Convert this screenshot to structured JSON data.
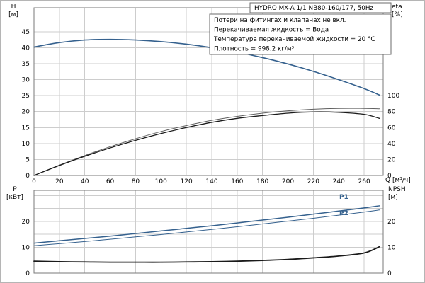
{
  "title": "HYDRO MX-A 1/1 NB80-160/177, 50Hz",
  "info_lines": [
    "Потери на фитингах и клапанах не вкл.",
    "Перекачиваемая жидкость = Вода",
    "Температура перекачиваемой жидкости = 20 °C",
    "Плотность = 998.2 кг/м³"
  ],
  "axis_labels": {
    "h": "H",
    "h_unit": "[м]",
    "eta": "eta",
    "eta_unit": "[%]",
    "p": "P",
    "p_unit": "[кВт]",
    "npsh": "NPSH",
    "npsh_unit": "[м]",
    "q": "Q [м³/ч]"
  },
  "curve_labels": {
    "p1": "P1",
    "p2": "P2"
  },
  "colors": {
    "blue": "#35618e",
    "black": "#1a1a1a",
    "gray": "#5f5f5f",
    "grid": "#cdcdcd",
    "frame": "#7a7a7a",
    "box_border": "#6b6b6b",
    "text": "#000000"
  },
  "chart_data": [
    {
      "type": "line",
      "name": "head-and-efficiency",
      "x_axis": {
        "label": "Q [м³/ч]",
        "range": [
          0,
          275
        ],
        "ticks": [
          0,
          20,
          40,
          60,
          80,
          100,
          120,
          140,
          160,
          180,
          200,
          220,
          240,
          260
        ]
      },
      "y_left": {
        "label": "H [м]",
        "range": [
          0,
          52.5
        ],
        "grid_step": 5,
        "ticks": [
          0,
          5,
          10,
          15,
          20,
          25,
          30,
          35,
          40,
          45
        ]
      },
      "y_right": {
        "label": "eta [%]",
        "ticks": [
          0,
          20,
          40,
          60,
          80,
          100
        ],
        "left_units_per_right_unit": 0.25
      },
      "show_x_tick_labels": true,
      "x": [
        0,
        20,
        40,
        60,
        80,
        100,
        120,
        140,
        160,
        180,
        200,
        220,
        240,
        260,
        272
      ],
      "series": [
        {
          "name": "head",
          "color_key": "blue",
          "width": 1.6,
          "axis": "left",
          "y": [
            40.2,
            41.6,
            42.4,
            42.6,
            42.4,
            41.9,
            41.1,
            40.0,
            38.6,
            36.9,
            34.9,
            32.6,
            30.0,
            27.2,
            25.2
          ]
        },
        {
          "name": "eta-a",
          "color_key": "gray",
          "width": 1.0,
          "axis": "right",
          "y": [
            0,
            13,
            25,
            36,
            46,
            55,
            62.5,
            69,
            74,
            78,
            81,
            83,
            84,
            84,
            83.5
          ]
        },
        {
          "name": "eta-b",
          "color_key": "black",
          "width": 1.3,
          "axis": "right",
          "y": [
            0,
            12.5,
            24,
            34.5,
            44,
            52.5,
            60,
            66.5,
            71.5,
            75,
            78,
            79.5,
            79,
            76.5,
            71.5
          ]
        }
      ]
    },
    {
      "type": "line",
      "name": "power-and-npsh",
      "x_axis": {
        "label": "",
        "range": [
          0,
          275
        ],
        "ticks": [
          0,
          20,
          40,
          60,
          80,
          100,
          120,
          140,
          160,
          180,
          200,
          220,
          240,
          260
        ]
      },
      "y_left": {
        "label": "P [кВт]",
        "range": [
          0,
          32
        ],
        "grid_step": 5,
        "ticks": [
          0,
          10,
          20
        ]
      },
      "y_right": {
        "label": "NPSH [м]",
        "ticks": [
          0,
          10,
          20
        ],
        "left_units_per_right_unit": 1
      },
      "show_x_tick_labels": false,
      "x": [
        0,
        20,
        40,
        60,
        80,
        100,
        120,
        140,
        160,
        180,
        200,
        220,
        240,
        260,
        272
      ],
      "series": [
        {
          "name": "P1",
          "color_key": "blue",
          "width": 1.5,
          "axis": "left",
          "y": [
            11.6,
            12.5,
            13.4,
            14.3,
            15.3,
            16.3,
            17.3,
            18.3,
            19.4,
            20.5,
            21.6,
            22.8,
            24.0,
            25.2,
            26.0
          ]
        },
        {
          "name": "P2",
          "color_key": "blue",
          "width": 1.0,
          "axis": "left",
          "y": [
            10.6,
            11.4,
            12.2,
            13.1,
            14.0,
            14.9,
            15.9,
            16.9,
            17.9,
            19.0,
            20.1,
            21.2,
            22.4,
            23.6,
            24.4
          ]
        },
        {
          "name": "NPSH",
          "color_key": "black",
          "width": 1.8,
          "axis": "right",
          "y": [
            4.6,
            4.4,
            4.3,
            4.2,
            4.2,
            4.2,
            4.3,
            4.4,
            4.6,
            4.9,
            5.3,
            5.9,
            6.6,
            7.8,
            10.2
          ]
        }
      ]
    }
  ]
}
